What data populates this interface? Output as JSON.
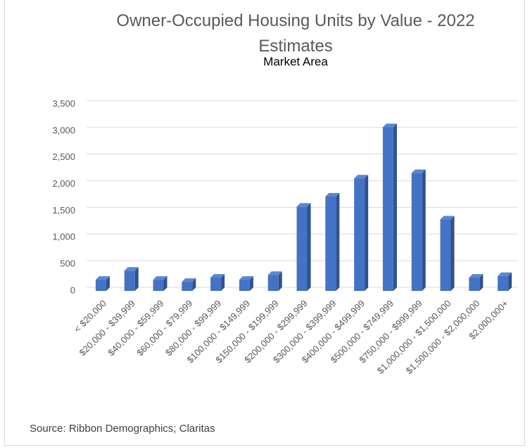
{
  "chart_data": {
    "type": "bar3d",
    "title": "Owner-Occupied Housing Units by Value - 2022 Estimates",
    "subtitle": "Market Area",
    "source": "Source: Ribbon Demographics; Claritas",
    "categories": [
      "< $20,000",
      "$20,000 - $39,999",
      "$40,000 - $59,999",
      "$60,000 - $79,999",
      "$80,000 - $99,999",
      "$100,000 - $149,999",
      "$150,000 - $199,999",
      "$200,000 - $299,999",
      "$300,000 - $399,999",
      "$400,000 - $499,999",
      "$500,000 - $749,999",
      "$750,000 - $999,999",
      "$1,000,000 - $1,500,000",
      "$1,500,000 - $2,000,000",
      "$2,000,000+"
    ],
    "values": [
      210,
      380,
      210,
      170,
      250,
      210,
      300,
      1580,
      1770,
      2110,
      3070,
      2210,
      1340,
      250,
      280
    ],
    "color": "#4472c4",
    "ylim": [
      0,
      3500
    ],
    "yticks": [
      0,
      500,
      {
        "value": 1000,
        "label": "1,000"
      },
      {
        "value": 1500,
        "label": "1,500"
      },
      {
        "value": 2000,
        "label": "2,000"
      },
      {
        "value": 2500,
        "label": "2,500"
      },
      {
        "value": 3000,
        "label": "3,000"
      },
      {
        "value": 3500,
        "label": "3,500"
      }
    ],
    "grid": true
  }
}
